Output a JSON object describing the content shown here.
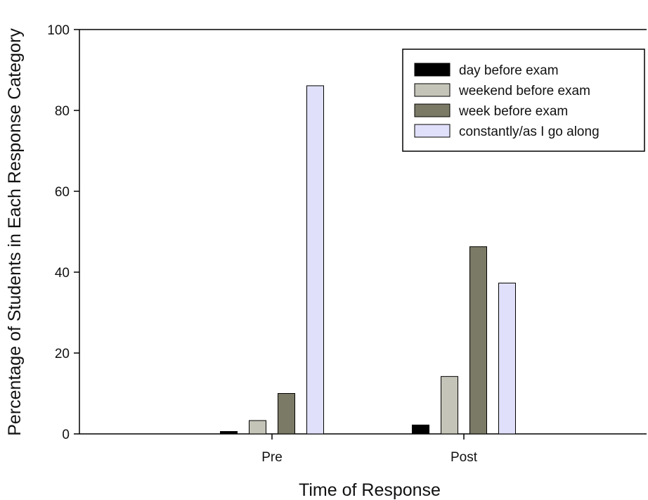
{
  "chart_data": {
    "type": "bar",
    "title": "",
    "xlabel": "Time of Response",
    "ylabel": "Percentage of Students in Each Response Category",
    "categories": [
      "Pre",
      "Post"
    ],
    "ylim": [
      0,
      100
    ],
    "yticks": [
      0,
      20,
      40,
      60,
      80,
      100
    ],
    "grid": false,
    "legend_position": "top-right",
    "series": [
      {
        "name": "day before exam",
        "color": "#000000",
        "values": [
          0.6,
          2.2
        ]
      },
      {
        "name": "weekend before exam",
        "color": "#c4c4b8",
        "values": [
          3.3,
          14.2
        ]
      },
      {
        "name": "week before exam",
        "color": "#7b7a66",
        "values": [
          10.0,
          46.3
        ]
      },
      {
        "name": "constantly/as I go along",
        "color": "#e0e0fa",
        "values": [
          86.1,
          37.3
        ]
      }
    ]
  }
}
